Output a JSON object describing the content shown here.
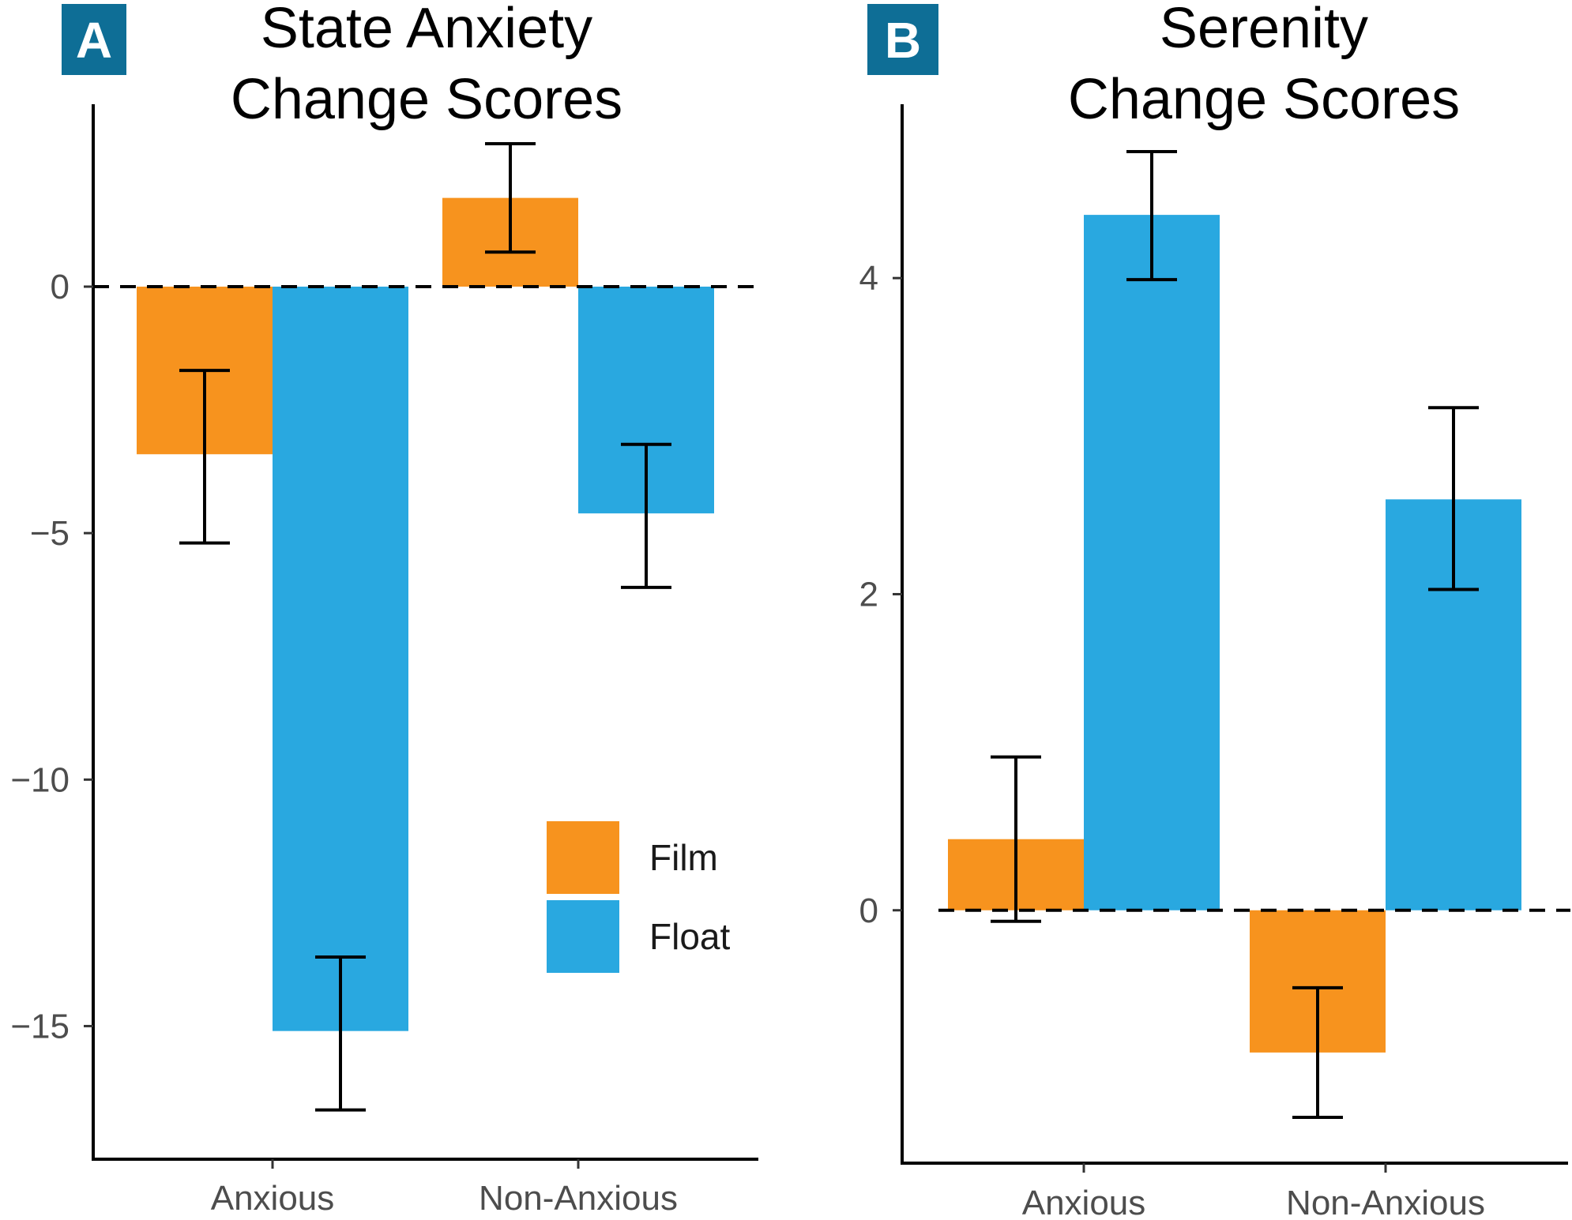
{
  "figure": "Two-panel bar chart of change scores by group and condition",
  "chart_data": [
    {
      "type": "bar",
      "panel_label": "A",
      "title_lines": [
        "State Anxiety",
        "Change Scores"
      ],
      "categories": [
        "Anxious",
        "Non-Anxious"
      ],
      "series": [
        {
          "name": "Film",
          "color": "#F7931E",
          "values": [
            -3.4,
            1.8
          ],
          "error_low": [
            -5.2,
            0.7
          ],
          "error_high": [
            -1.7,
            2.9
          ]
        },
        {
          "name": "Float",
          "color": "#29A8E0",
          "values": [
            -15.1,
            -4.6
          ],
          "error_low": [
            -16.7,
            -6.1
          ],
          "error_high": [
            -13.6,
            -3.2
          ]
        }
      ],
      "ylim": [
        -17.7,
        3.7
      ],
      "yticks": [
        0,
        -5,
        -10,
        -15
      ],
      "ytick_labels": [
        "0",
        "−5",
        "−10",
        "−15"
      ],
      "reference_line": 0,
      "xlabel": "",
      "ylabel": "",
      "legend": {
        "position": "bottom-right",
        "entries": [
          {
            "name": "Film",
            "color": "#F7931E"
          },
          {
            "name": "Float",
            "color": "#29A8E0"
          }
        ]
      }
    },
    {
      "type": "bar",
      "panel_label": "B",
      "title_lines": [
        "Serenity",
        "Change Scores"
      ],
      "categories": [
        "Anxious",
        "Non-Anxious"
      ],
      "series": [
        {
          "name": "Film",
          "color": "#F7931E",
          "values": [
            0.45,
            -0.9
          ],
          "error_low": [
            -0.07,
            -1.31
          ],
          "error_high": [
            0.97,
            -0.49
          ]
        },
        {
          "name": "Float",
          "color": "#29A8E0",
          "values": [
            4.4,
            2.6
          ],
          "error_low": [
            3.99,
            2.03
          ],
          "error_high": [
            4.8,
            3.18
          ]
        }
      ],
      "ylim": [
        -1.6,
        5.1
      ],
      "yticks": [
        0,
        2,
        4
      ],
      "ytick_labels": [
        "0",
        "2",
        "4"
      ],
      "reference_line": 0,
      "xlabel": "",
      "ylabel": ""
    }
  ]
}
